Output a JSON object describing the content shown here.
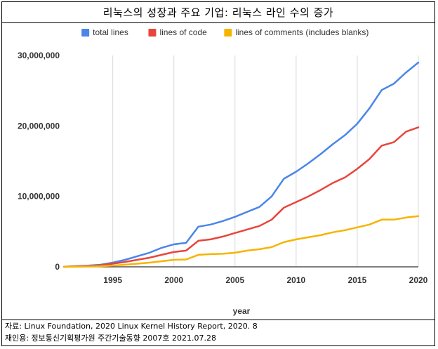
{
  "header": {
    "title": "리눅스의 성장과 주요 기업: 리눅스 라인 수의 증가"
  },
  "footer": {
    "source": "자료: Linux Foundation, 2020 Linux Kernel History Report, 2020. 8",
    "citation": "재인용: 정보통신기획평가원 주간기술동향 2007호 2021.07.28"
  },
  "chart_data": {
    "type": "line",
    "title": "",
    "xlabel": "year",
    "ylabel": "",
    "xlim": [
      1991,
      2020
    ],
    "ylim": [
      0,
      30000000
    ],
    "x_ticks": [
      1995,
      2000,
      2005,
      2010,
      2015,
      2020
    ],
    "y_ticks": [
      0,
      10000000,
      20000000,
      30000000
    ],
    "y_tick_labels": [
      "0",
      "10,000,000",
      "20,000,000",
      "30,000,000"
    ],
    "grid": "vertical",
    "legend_position": "top",
    "series": [
      {
        "name": "total lines",
        "color": "#4a86e8",
        "x": [
          1991,
          1992,
          1993,
          1994,
          1995,
          1996,
          1997,
          1998,
          1999,
          2000,
          2001,
          2002,
          2003,
          2004,
          2005,
          2006,
          2007,
          2008,
          2009,
          2010,
          2011,
          2012,
          2013,
          2014,
          2015,
          2016,
          2017,
          2018,
          2019,
          2020
        ],
        "values": [
          10000,
          100000,
          180000,
          300000,
          600000,
          1000000,
          1500000,
          2000000,
          2700000,
          3200000,
          3400000,
          5700000,
          6000000,
          6500000,
          7100000,
          7800000,
          8500000,
          10000000,
          12500000,
          13500000,
          14700000,
          16000000,
          17400000,
          18700000,
          20300000,
          22500000,
          25100000,
          26000000,
          27600000,
          29000000
        ]
      },
      {
        "name": "lines of code",
        "color": "#e8453c",
        "x": [
          1991,
          1992,
          1993,
          1994,
          1995,
          1996,
          1997,
          1998,
          1999,
          2000,
          2001,
          2002,
          2003,
          2004,
          2005,
          2006,
          2007,
          2008,
          2009,
          2010,
          2011,
          2012,
          2013,
          2014,
          2015,
          2016,
          2017,
          2018,
          2019,
          2020
        ],
        "values": [
          8000,
          70000,
          130000,
          220000,
          450000,
          700000,
          1000000,
          1300000,
          1700000,
          2100000,
          2300000,
          3700000,
          3900000,
          4300000,
          4800000,
          5300000,
          5800000,
          6700000,
          8400000,
          9200000,
          10000000,
          10900000,
          11900000,
          12700000,
          13900000,
          15300000,
          17200000,
          17700000,
          19200000,
          19800000
        ]
      },
      {
        "name": "lines of comments (includes blanks)",
        "color": "#f6b400",
        "x": [
          1991,
          1992,
          1993,
          1994,
          1995,
          1996,
          1997,
          1998,
          1999,
          2000,
          2001,
          2002,
          2003,
          2004,
          2005,
          2006,
          2007,
          2008,
          2009,
          2010,
          2011,
          2012,
          2013,
          2014,
          2015,
          2016,
          2017,
          2018,
          2019,
          2020
        ],
        "values": [
          3000,
          30000,
          50000,
          90000,
          180000,
          300000,
          450000,
          600000,
          800000,
          1000000,
          1050000,
          1700000,
          1800000,
          1850000,
          2000000,
          2300000,
          2500000,
          2800000,
          3500000,
          3900000,
          4200000,
          4500000,
          4900000,
          5200000,
          5600000,
          6000000,
          6700000,
          6700000,
          7000000,
          7200000
        ]
      }
    ]
  }
}
